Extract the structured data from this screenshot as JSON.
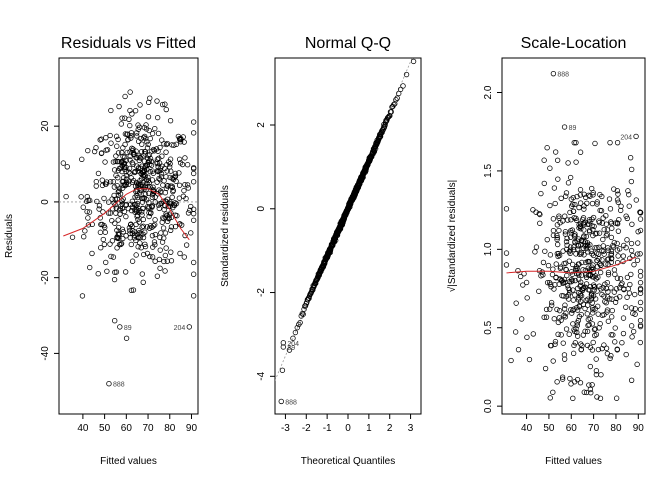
{
  "chart_data": [
    {
      "type": "scatter",
      "title": "Residuals vs Fitted",
      "xlabel": "Fitted values",
      "ylabel": "Residuals",
      "xlim": [
        29,
        93
      ],
      "ylim": [
        -56,
        38
      ],
      "xticks": [
        40,
        50,
        60,
        70,
        80,
        90
      ],
      "yticks": [
        -40,
        -20,
        0,
        20
      ],
      "reference_line": {
        "kind": "horizontal",
        "y": 0,
        "style": "dotted"
      },
      "smooth": {
        "color": "#d62728",
        "x": [
          31,
          40,
          50,
          60,
          65,
          70,
          75,
          80,
          85,
          89
        ],
        "y": [
          -9,
          -7,
          -3,
          2,
          3.5,
          3.5,
          2,
          -2,
          -7,
          -10
        ]
      },
      "labeled_points": [
        {
          "label": "888",
          "x": 52,
          "y": -48
        },
        {
          "label": "89",
          "x": 57,
          "y": -33
        },
        {
          "label": "204",
          "x": 89,
          "y": -33
        }
      ],
      "point_summary": {
        "n_approx": 600,
        "x_mean": 67,
        "x_sd": 12,
        "y_mean": 0,
        "y_sd": 10
      }
    },
    {
      "type": "scatter",
      "title": "Normal Q-Q",
      "xlabel": "Theoretical Quantiles",
      "ylabel": "Standardized residuals",
      "xlim": [
        -3.5,
        3.5
      ],
      "ylim": [
        -4.9,
        3.6
      ],
      "xticks": [
        -3,
        -2,
        -1,
        0,
        1,
        2,
        3
      ],
      "yticks": [
        -4,
        -2,
        0,
        2
      ],
      "reference_line": {
        "kind": "diagonal",
        "x": [
          -3.5,
          3.5
        ],
        "y": [
          -4.1,
          4.1
        ],
        "style": "dotted"
      },
      "labeled_points": [
        {
          "label": "888",
          "x": -3.2,
          "y": -4.6
        },
        {
          "label": "204",
          "x": -3.1,
          "y": -3.2
        },
        {
          "label": "89",
          "x": -3.1,
          "y": -3.3
        }
      ],
      "point_summary": {
        "n_approx": 600,
        "description": "sample quantiles closely follow the diagonal with a light lower tail"
      }
    },
    {
      "type": "scatter",
      "title": "Scale-Location",
      "xlabel": "Fitted values",
      "ylabel": "√|Standardized residuals|",
      "xlim": [
        29,
        93
      ],
      "ylim": [
        -0.05,
        2.22
      ],
      "xticks": [
        40,
        50,
        60,
        70,
        80,
        90
      ],
      "yticks": [
        0.0,
        0.5,
        1.0,
        1.5,
        2.0
      ],
      "smooth": {
        "color": "#d62728",
        "x": [
          31,
          40,
          50,
          60,
          70,
          80,
          89
        ],
        "y": [
          0.85,
          0.86,
          0.86,
          0.85,
          0.86,
          0.9,
          0.95
        ]
      },
      "labeled_points": [
        {
          "label": "888",
          "x": 52,
          "y": 2.12
        },
        {
          "label": "89",
          "x": 57,
          "y": 1.78
        },
        {
          "label": "204",
          "x": 89,
          "y": 1.72
        }
      ],
      "point_summary": {
        "n_approx": 600,
        "x_mean": 67,
        "x_sd": 12,
        "y_mean": 0.85,
        "y_sd": 0.32
      }
    }
  ]
}
